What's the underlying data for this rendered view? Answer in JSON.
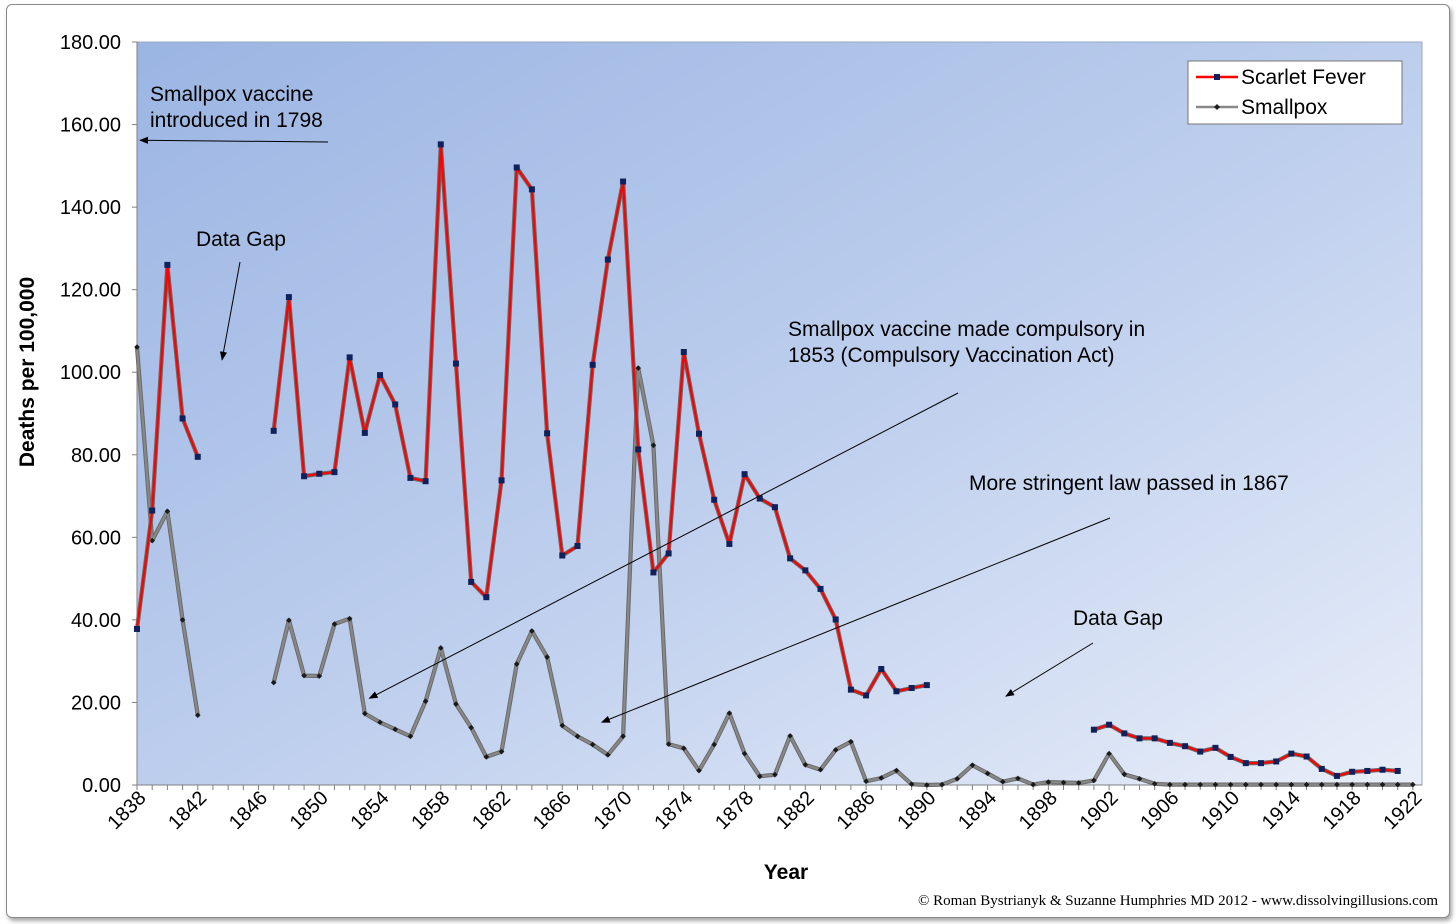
{
  "chart_data": {
    "type": "line",
    "xlabel": "Year",
    "ylabel": "Deaths per 100,000",
    "ylim": [
      0,
      180
    ],
    "xlim": [
      1838,
      1922
    ],
    "grid": false,
    "legend_position": "top-right",
    "y_ticks": [
      "0.00",
      "20.00",
      "40.00",
      "60.00",
      "80.00",
      "100.00",
      "120.00",
      "140.00",
      "160.00",
      "180.00"
    ],
    "x_ticks": [
      "1838",
      "1842",
      "1846",
      "1850",
      "1854",
      "1858",
      "1862",
      "1866",
      "1870",
      "1874",
      "1878",
      "1882",
      "1886",
      "1890",
      "1894",
      "1898",
      "1902",
      "1906",
      "1910",
      "1914",
      "1918",
      "1922"
    ],
    "series": [
      {
        "name": "Scarlet Fever",
        "color": "#ff0000",
        "marker": "square",
        "segments": [
          [
            [
              1838,
              37.8
            ],
            [
              1839,
              66.5
            ],
            [
              1840,
              126.0
            ],
            [
              1841,
              88.8
            ],
            [
              1842,
              79.5
            ]
          ],
          [
            [
              1847,
              85.8
            ],
            [
              1848,
              118.2
            ],
            [
              1849,
              74.8
            ],
            [
              1850,
              75.4
            ],
            [
              1851,
              75.8
            ],
            [
              1852,
              103.6
            ],
            [
              1853,
              85.3
            ],
            [
              1854,
              99.3
            ],
            [
              1855,
              92.2
            ],
            [
              1856,
              74.4
            ],
            [
              1857,
              73.6
            ],
            [
              1858,
              155.2
            ],
            [
              1859,
              102.1
            ],
            [
              1860,
              49.2
            ],
            [
              1861,
              45.5
            ],
            [
              1862,
              73.8
            ],
            [
              1863,
              149.6
            ],
            [
              1864,
              144.3
            ],
            [
              1865,
              85.2
            ],
            [
              1866,
              55.6
            ],
            [
              1867,
              57.9
            ],
            [
              1868,
              101.8
            ],
            [
              1869,
              127.3
            ],
            [
              1870,
              146.2
            ],
            [
              1871,
              81.3
            ],
            [
              1872,
              51.5
            ],
            [
              1873,
              56.1
            ],
            [
              1874,
              104.9
            ],
            [
              1875,
              85.1
            ],
            [
              1876,
              69.1
            ],
            [
              1877,
              58.4
            ],
            [
              1878,
              75.3
            ],
            [
              1879,
              69.4
            ],
            [
              1880,
              67.3
            ],
            [
              1881,
              54.9
            ],
            [
              1882,
              52.0
            ],
            [
              1883,
              47.5
            ],
            [
              1884,
              40.1
            ],
            [
              1885,
              23.1
            ],
            [
              1886,
              21.7
            ],
            [
              1887,
              28.1
            ],
            [
              1888,
              22.7
            ],
            [
              1889,
              23.5
            ],
            [
              1890,
              24.2
            ]
          ],
          [
            [
              1901,
              13.4
            ],
            [
              1902,
              14.6
            ],
            [
              1903,
              12.5
            ],
            [
              1904,
              11.3
            ],
            [
              1905,
              11.3
            ],
            [
              1906,
              10.2
            ],
            [
              1907,
              9.4
            ],
            [
              1908,
              8.1
            ],
            [
              1909,
              9.0
            ],
            [
              1910,
              6.8
            ],
            [
              1911,
              5.3
            ],
            [
              1912,
              5.3
            ],
            [
              1913,
              5.7
            ],
            [
              1914,
              7.6
            ],
            [
              1915,
              6.9
            ],
            [
              1916,
              3.9
            ],
            [
              1917,
              2.2
            ],
            [
              1918,
              3.2
            ],
            [
              1919,
              3.4
            ],
            [
              1920,
              3.7
            ],
            [
              1921,
              3.4
            ]
          ]
        ]
      },
      {
        "name": "Smallpox",
        "color": "#888888",
        "marker": "diamond",
        "segments": [
          [
            [
              1838,
              106.1
            ],
            [
              1839,
              59.2
            ],
            [
              1840,
              66.3
            ],
            [
              1841,
              40.0
            ],
            [
              1842,
              16.9
            ]
          ],
          [
            [
              1847,
              24.8
            ],
            [
              1848,
              39.9
            ],
            [
              1849,
              26.5
            ],
            [
              1850,
              26.4
            ],
            [
              1851,
              39.0
            ],
            [
              1852,
              40.3
            ],
            [
              1853,
              17.3
            ],
            [
              1854,
              15.2
            ],
            [
              1855,
              13.5
            ],
            [
              1856,
              11.8
            ],
            [
              1857,
              20.3
            ],
            [
              1858,
              33.2
            ],
            [
              1859,
              19.6
            ],
            [
              1860,
              13.9
            ],
            [
              1861,
              6.8
            ],
            [
              1862,
              8.1
            ],
            [
              1863,
              29.3
            ],
            [
              1864,
              37.3
            ],
            [
              1865,
              31.0
            ],
            [
              1866,
              14.4
            ],
            [
              1867,
              11.8
            ],
            [
              1868,
              9.8
            ],
            [
              1869,
              7.3
            ],
            [
              1870,
              11.8
            ],
            [
              1871,
              101.0
            ],
            [
              1872,
              82.3
            ],
            [
              1873,
              9.9
            ],
            [
              1874,
              8.9
            ],
            [
              1875,
              3.5
            ],
            [
              1876,
              9.8
            ],
            [
              1877,
              17.4
            ],
            [
              1878,
              7.6
            ],
            [
              1879,
              2.1
            ],
            [
              1880,
              2.5
            ],
            [
              1881,
              11.9
            ],
            [
              1882,
              4.9
            ],
            [
              1883,
              3.7
            ],
            [
              1884,
              8.5
            ],
            [
              1885,
              10.5
            ],
            [
              1886,
              0.9
            ],
            [
              1887,
              1.7
            ],
            [
              1888,
              3.5
            ],
            [
              1889,
              0.2
            ],
            [
              1890,
              0.0
            ],
            [
              1891,
              0.1
            ],
            [
              1892,
              1.5
            ],
            [
              1893,
              4.8
            ],
            [
              1894,
              2.8
            ],
            [
              1895,
              0.8
            ],
            [
              1896,
              1.6
            ],
            [
              1897,
              0.1
            ],
            [
              1898,
              0.7
            ],
            [
              1899,
              0.6
            ],
            [
              1900,
              0.5
            ],
            [
              1901,
              1.1
            ],
            [
              1902,
              7.6
            ],
            [
              1903,
              2.6
            ],
            [
              1904,
              1.5
            ],
            [
              1905,
              0.3
            ],
            [
              1906,
              0.1
            ],
            [
              1907,
              0.1
            ],
            [
              1908,
              0.1
            ],
            [
              1909,
              0.1
            ],
            [
              1910,
              0.1
            ],
            [
              1911,
              0.1
            ],
            [
              1912,
              0.1
            ],
            [
              1913,
              0.1
            ],
            [
              1914,
              0.1
            ],
            [
              1915,
              0.1
            ],
            [
              1916,
              0.1
            ],
            [
              1917,
              0.1
            ],
            [
              1918,
              0.1
            ],
            [
              1919,
              0.1
            ],
            [
              1920,
              0.1
            ],
            [
              1921,
              0.1
            ],
            [
              1922,
              0.1
            ]
          ]
        ]
      }
    ],
    "annotations": [
      {
        "id": "smallpox-vaccine-1798",
        "lines": [
          "Smallpox vaccine",
          "introduced in 1798"
        ],
        "arrow_tip": [
          1838.2,
          156.2
        ]
      },
      {
        "id": "data-gap-1",
        "lines": [
          "Data Gap"
        ],
        "arrow_tip": [
          1843.6,
          103.0
        ]
      },
      {
        "id": "compulsory-1853",
        "lines": [
          "Smallpox vaccine made compulsory in",
          "1853 (Compulsory Vaccination Act)"
        ],
        "arrow_tip": [
          1853.3,
          21.0
        ]
      },
      {
        "id": "stringent-1867",
        "lines": [
          "More stringent law passed in 1867"
        ],
        "arrow_tip": [
          1868.6,
          15.2
        ]
      },
      {
        "id": "data-gap-2",
        "lines": [
          "Data Gap"
        ],
        "arrow_tip": [
          1895.2,
          21.5
        ]
      }
    ],
    "credit": "© Roman Bystrianyk & Suzanne Humphries MD 2012 - www.dissolvingillusions.com"
  }
}
